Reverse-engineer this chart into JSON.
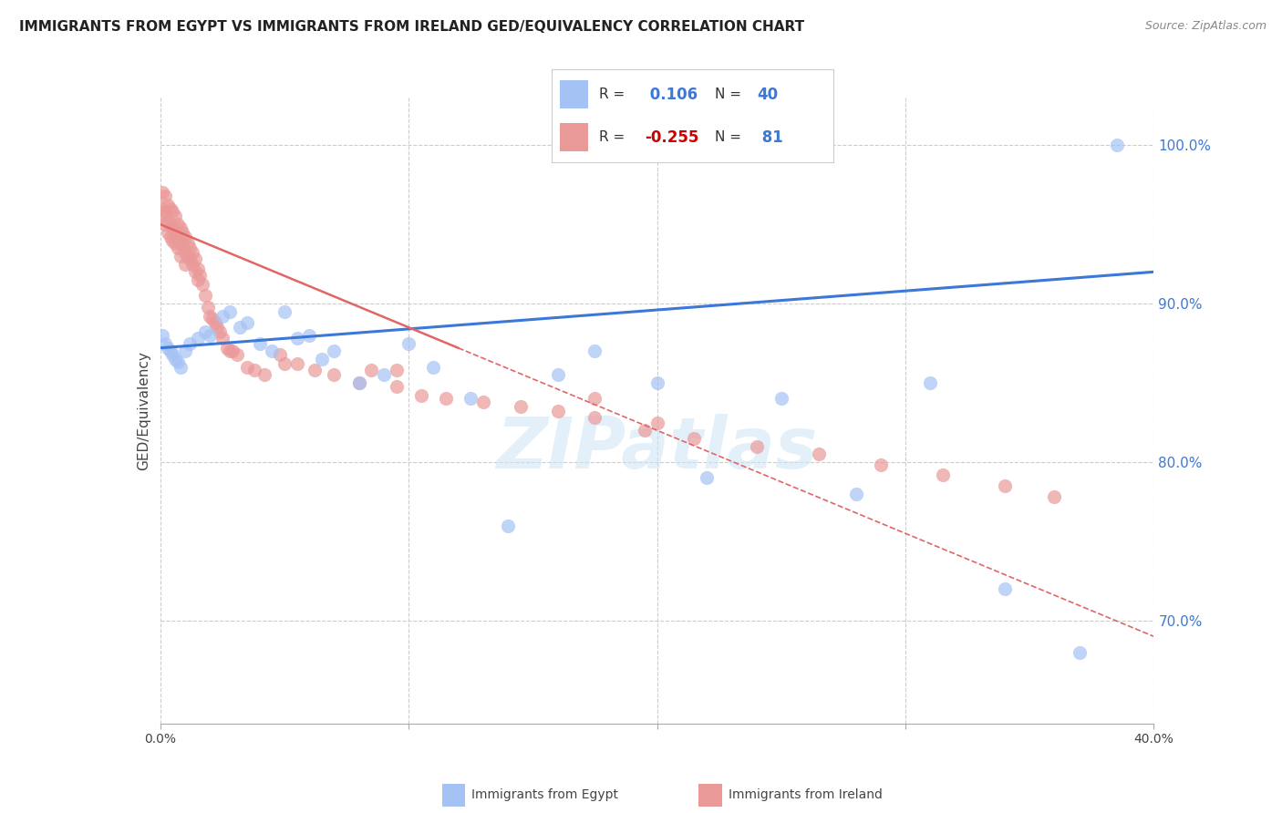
{
  "title": "IMMIGRANTS FROM EGYPT VS IMMIGRANTS FROM IRELAND GED/EQUIVALENCY CORRELATION CHART",
  "source": "Source: ZipAtlas.com",
  "ylabel": "GED/Equivalency",
  "xlim": [
    0.0,
    0.4
  ],
  "ylim": [
    0.635,
    1.03
  ],
  "yticks": [
    0.7,
    0.8,
    0.9,
    1.0
  ],
  "yticklabels": [
    "70.0%",
    "80.0%",
    "90.0%",
    "100.0%"
  ],
  "egypt_R": 0.106,
  "egypt_N": 40,
  "ireland_R": -0.255,
  "ireland_N": 81,
  "egypt_color": "#a4c2f4",
  "ireland_color": "#ea9999",
  "egypt_line_color": "#3c78d8",
  "ireland_line_color": "#e06666",
  "watermark": "ZIPatlas",
  "egypt_x": [
    0.001,
    0.002,
    0.003,
    0.004,
    0.005,
    0.006,
    0.007,
    0.008,
    0.01,
    0.012,
    0.015,
    0.018,
    0.02,
    0.025,
    0.028,
    0.032,
    0.035,
    0.04,
    0.045,
    0.05,
    0.055,
    0.06,
    0.065,
    0.07,
    0.08,
    0.09,
    0.1,
    0.11,
    0.125,
    0.14,
    0.16,
    0.175,
    0.2,
    0.22,
    0.25,
    0.28,
    0.31,
    0.34,
    0.37,
    0.385
  ],
  "egypt_y": [
    0.88,
    0.875,
    0.872,
    0.87,
    0.868,
    0.865,
    0.863,
    0.86,
    0.87,
    0.875,
    0.878,
    0.882,
    0.88,
    0.892,
    0.895,
    0.885,
    0.888,
    0.875,
    0.87,
    0.895,
    0.878,
    0.88,
    0.865,
    0.87,
    0.85,
    0.855,
    0.875,
    0.86,
    0.84,
    0.76,
    0.855,
    0.87,
    0.85,
    0.79,
    0.84,
    0.78,
    0.85,
    0.72,
    0.68,
    1.0
  ],
  "egypt_sizes": [
    180,
    180,
    100,
    100,
    100,
    100,
    100,
    100,
    100,
    100,
    100,
    100,
    100,
    100,
    100,
    100,
    100,
    100,
    100,
    100,
    100,
    100,
    100,
    100,
    100,
    100,
    100,
    100,
    100,
    100,
    100,
    100,
    100,
    100,
    100,
    100,
    100,
    100,
    100,
    100
  ],
  "ireland_x": [
    0.001,
    0.001,
    0.001,
    0.002,
    0.002,
    0.002,
    0.003,
    0.003,
    0.003,
    0.004,
    0.004,
    0.004,
    0.005,
    0.005,
    0.005,
    0.006,
    0.006,
    0.006,
    0.007,
    0.007,
    0.007,
    0.008,
    0.008,
    0.008,
    0.009,
    0.009,
    0.01,
    0.01,
    0.01,
    0.011,
    0.011,
    0.012,
    0.012,
    0.013,
    0.013,
    0.014,
    0.014,
    0.015,
    0.015,
    0.016,
    0.017,
    0.018,
    0.019,
    0.02,
    0.021,
    0.022,
    0.023,
    0.024,
    0.025,
    0.027,
    0.029,
    0.031,
    0.035,
    0.038,
    0.042,
    0.048,
    0.055,
    0.062,
    0.07,
    0.08,
    0.095,
    0.105,
    0.115,
    0.13,
    0.145,
    0.16,
    0.175,
    0.195,
    0.215,
    0.24,
    0.265,
    0.29,
    0.315,
    0.34,
    0.36,
    0.05,
    0.028,
    0.2,
    0.175,
    0.095,
    0.085
  ],
  "ireland_y": [
    0.97,
    0.96,
    0.955,
    0.968,
    0.958,
    0.95,
    0.962,
    0.952,
    0.945,
    0.96,
    0.95,
    0.942,
    0.958,
    0.948,
    0.94,
    0.955,
    0.945,
    0.938,
    0.95,
    0.942,
    0.935,
    0.948,
    0.938,
    0.93,
    0.945,
    0.938,
    0.942,
    0.932,
    0.925,
    0.938,
    0.93,
    0.935,
    0.928,
    0.932,
    0.925,
    0.928,
    0.92,
    0.922,
    0.915,
    0.918,
    0.912,
    0.905,
    0.898,
    0.892,
    0.89,
    0.888,
    0.885,
    0.882,
    0.878,
    0.872,
    0.87,
    0.868,
    0.86,
    0.858,
    0.855,
    0.868,
    0.862,
    0.858,
    0.855,
    0.85,
    0.848,
    0.842,
    0.84,
    0.838,
    0.835,
    0.832,
    0.828,
    0.82,
    0.815,
    0.81,
    0.805,
    0.798,
    0.792,
    0.785,
    0.778,
    0.862,
    0.87,
    0.825,
    0.84,
    0.858,
    0.858
  ],
  "ireland_sizes": [
    160,
    160,
    160,
    100,
    100,
    100,
    100,
    100,
    100,
    100,
    100,
    100,
    100,
    100,
    100,
    100,
    100,
    100,
    100,
    100,
    100,
    100,
    100,
    100,
    100,
    100,
    100,
    100,
    100,
    100,
    100,
    100,
    100,
    100,
    100,
    100,
    100,
    100,
    100,
    100,
    100,
    100,
    100,
    100,
    100,
    100,
    100,
    100,
    100,
    100,
    100,
    100,
    100,
    100,
    100,
    100,
    100,
    100,
    100,
    100,
    100,
    100,
    100,
    100,
    100,
    100,
    100,
    100,
    100,
    100,
    100,
    100,
    100,
    100,
    100,
    100,
    100,
    100,
    100,
    100,
    100
  ]
}
